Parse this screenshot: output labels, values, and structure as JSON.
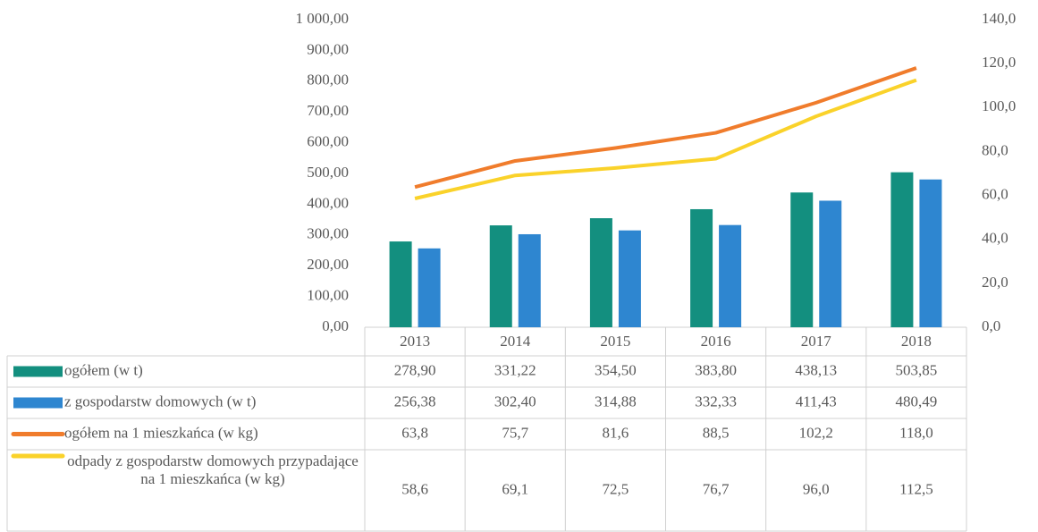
{
  "chart_data": {
    "type": "bar",
    "categories": [
      "2013",
      "2014",
      "2015",
      "2016",
      "2017",
      "2018"
    ],
    "series": [
      {
        "name": "ogółem (w t)",
        "type": "bar",
        "color": "#138f7f",
        "values": [
          278.9,
          331.22,
          354.5,
          383.8,
          438.13,
          503.85
        ],
        "value_labels": [
          "278,90",
          "331,22",
          "354,50",
          "383,80",
          "438,13",
          "503,85"
        ]
      },
      {
        "name": "z gospodarstw domowych (w t)",
        "type": "bar",
        "color": "#2e86d0",
        "values": [
          256.38,
          302.4,
          314.88,
          332.33,
          411.43,
          480.49
        ],
        "value_labels": [
          "256,38",
          "302,40",
          "314,88",
          "332,33",
          "411,43",
          "480,49"
        ]
      },
      {
        "name": "ogółem na 1 mieszkańca (w kg)",
        "type": "line",
        "axis": "y2",
        "color": "#f07c2c",
        "values": [
          63.8,
          75.7,
          81.6,
          88.5,
          102.2,
          118.0
        ],
        "value_labels": [
          "63,8",
          "75,7",
          "81,6",
          "88,5",
          "102,2",
          "118,0"
        ]
      },
      {
        "name": "odpady z gospodarstw domowych przypadające na 1 mieszkańca (w kg)",
        "type": "line",
        "axis": "y2",
        "color": "#fad22a",
        "values": [
          58.6,
          69.1,
          72.5,
          76.7,
          96.0,
          112.5
        ],
        "value_labels": [
          "58,6",
          "69,1",
          "72,5",
          "76,7",
          "96,0",
          "112,5"
        ]
      }
    ],
    "ylim": [
      0,
      1000
    ],
    "yticks": [
      {
        "value": 0,
        "label": "0,00"
      },
      {
        "value": 100,
        "label": "100,00"
      },
      {
        "value": 200,
        "label": "200,00"
      },
      {
        "value": 300,
        "label": "300,00"
      },
      {
        "value": 400,
        "label": "400,00"
      },
      {
        "value": 500,
        "label": "500,00"
      },
      {
        "value": 600,
        "label": "600,00"
      },
      {
        "value": 700,
        "label": "700,00"
      },
      {
        "value": 800,
        "label": "800,00"
      },
      {
        "value": 900,
        "label": "900,00"
      },
      {
        "value": 1000,
        "label": "1 000,00"
      }
    ],
    "y2lim": [
      0,
      140
    ],
    "y2ticks": [
      {
        "value": 0,
        "label": "0,0"
      },
      {
        "value": 20,
        "label": "20,0"
      },
      {
        "value": 40,
        "label": "40,0"
      },
      {
        "value": 60,
        "label": "60,0"
      },
      {
        "value": 80,
        "label": "80,0"
      },
      {
        "value": 100,
        "label": "100,0"
      },
      {
        "value": 120,
        "label": "120,0"
      },
      {
        "value": 140,
        "label": "140,0"
      }
    ],
    "grid": false
  }
}
